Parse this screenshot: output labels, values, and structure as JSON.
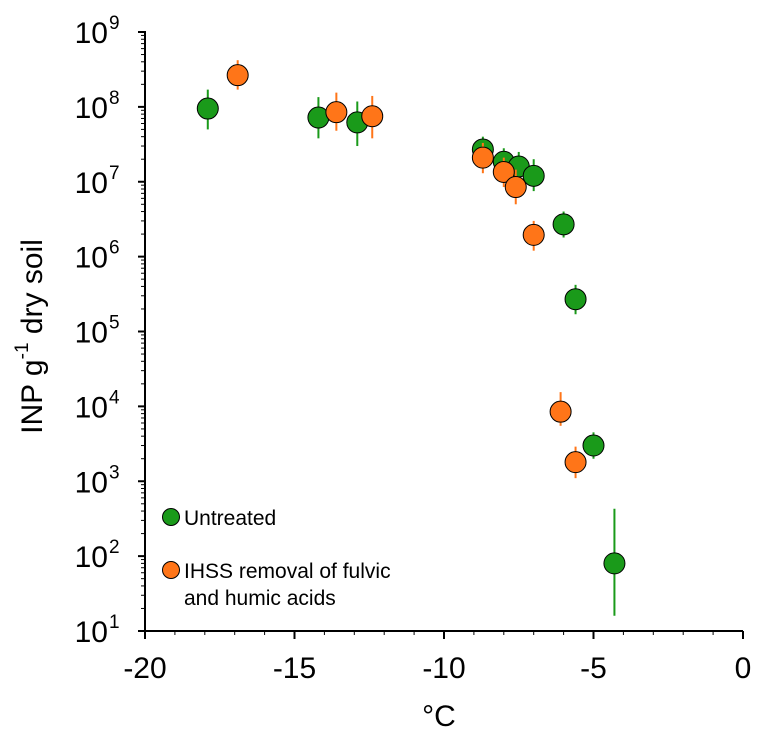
{
  "chart_data": {
    "type": "scatter",
    "xlabel": "°C",
    "ylabel": {
      "base": "INP g",
      "sup": "-1",
      "rest": " dry soil"
    },
    "y_scale": "log",
    "xlim": [
      -20,
      0
    ],
    "ylim": [
      10,
      1000000000
    ],
    "x_ticks": [
      {
        "value": -20,
        "label": "-20"
      },
      {
        "value": -15,
        "label": "-15"
      },
      {
        "value": -10,
        "label": "-10"
      },
      {
        "value": -5,
        "label": "-5"
      },
      {
        "value": 0,
        "label": "0"
      }
    ],
    "y_ticks": [
      {
        "value": 10,
        "base": "10",
        "exp": "1"
      },
      {
        "value": 100,
        "base": "10",
        "exp": "2"
      },
      {
        "value": 1000,
        "base": "10",
        "exp": "3"
      },
      {
        "value": 10000,
        "base": "10",
        "exp": "4"
      },
      {
        "value": 100000,
        "base": "10",
        "exp": "5"
      },
      {
        "value": 1000000,
        "base": "10",
        "exp": "6"
      },
      {
        "value": 10000000,
        "base": "10",
        "exp": "7"
      },
      {
        "value": 100000000,
        "base": "10",
        "exp": "8"
      },
      {
        "value": 1000000000,
        "base": "10",
        "exp": "9"
      }
    ],
    "grid": false,
    "legend_position": "bottom-left",
    "series": [
      {
        "name": "Untreated",
        "color": "#1a9a1a",
        "points": [
          {
            "x": -17.9,
            "y": 95000000,
            "lo": 50000000,
            "hi": 170000000
          },
          {
            "x": -14.2,
            "y": 72000000,
            "lo": 38000000,
            "hi": 135000000
          },
          {
            "x": -12.9,
            "y": 62000000,
            "lo": 30000000,
            "hi": 118000000
          },
          {
            "x": -8.7,
            "y": 27000000,
            "lo": 18000000,
            "hi": 40000000
          },
          {
            "x": -8.0,
            "y": 18500000,
            "lo": 12000000,
            "hi": 28000000
          },
          {
            "x": -7.5,
            "y": 16000000,
            "lo": 10000000,
            "hi": 25000000
          },
          {
            "x": -7.0,
            "y": 12000000,
            "lo": 7500000,
            "hi": 20000000
          },
          {
            "x": -6.0,
            "y": 2700000,
            "lo": 1800000,
            "hi": 4000000
          },
          {
            "x": -5.6,
            "y": 270000,
            "lo": 170000,
            "hi": 420000
          },
          {
            "x": -5.0,
            "y": 3000,
            "lo": 2000,
            "hi": 4500
          },
          {
            "x": -4.3,
            "y": 80,
            "lo": 16,
            "hi": 430
          }
        ]
      },
      {
        "name": "IHSS removal of fulvic and humic acids",
        "legend_lines": [
          "IHSS removal of fulvic",
          "and humic acids"
        ],
        "color": "#ff7518",
        "points": [
          {
            "x": -16.9,
            "y": 265000000,
            "lo": 170000000,
            "hi": 420000000
          },
          {
            "x": -13.6,
            "y": 85000000,
            "lo": 48000000,
            "hi": 155000000
          },
          {
            "x": -12.4,
            "y": 75000000,
            "lo": 38000000,
            "hi": 140000000
          },
          {
            "x": -8.7,
            "y": 21000000,
            "lo": 13000000,
            "hi": 33000000
          },
          {
            "x": -8.0,
            "y": 13500000,
            "lo": 8500000,
            "hi": 21000000
          },
          {
            "x": -7.6,
            "y": 8500000,
            "lo": 5000000,
            "hi": 14500000
          },
          {
            "x": -7.0,
            "y": 1950000,
            "lo": 1200000,
            "hi": 3000000
          },
          {
            "x": -6.1,
            "y": 8500,
            "lo": 5500,
            "hi": 15500
          },
          {
            "x": -5.6,
            "y": 1800,
            "lo": 1100,
            "hi": 2900
          }
        ]
      }
    ]
  }
}
